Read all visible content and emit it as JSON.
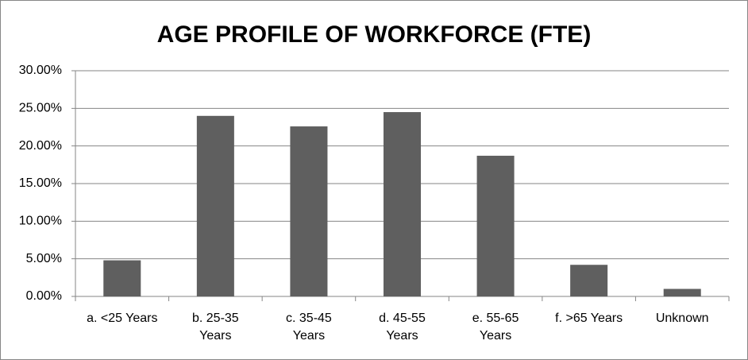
{
  "chart_data": {
    "type": "bar",
    "title": "AGE PROFILE OF WORKFORCE (FTE)",
    "categories": [
      "a. <25 Years",
      "b. 25-35 Years",
      "c. 35-45 Years",
      "d. 45-55 Years",
      "e. 55-65 Years",
      "f. >65 Years",
      "Unknown"
    ],
    "values": [
      4.8,
      24.0,
      22.6,
      24.5,
      18.7,
      4.2,
      1.0
    ],
    "color": "#5f5f5f",
    "ylim": [
      0,
      30
    ],
    "yticks": [
      {
        "value": 0,
        "label": "0.00%"
      },
      {
        "value": 5,
        "label": "5.00%"
      },
      {
        "value": 10,
        "label": "10.00%"
      },
      {
        "value": 15,
        "label": "15.00%"
      },
      {
        "value": 20,
        "label": "20.00%"
      },
      {
        "value": 25,
        "label": "25.00%"
      },
      {
        "value": 30,
        "label": "30.00%"
      }
    ],
    "grid": true
  }
}
